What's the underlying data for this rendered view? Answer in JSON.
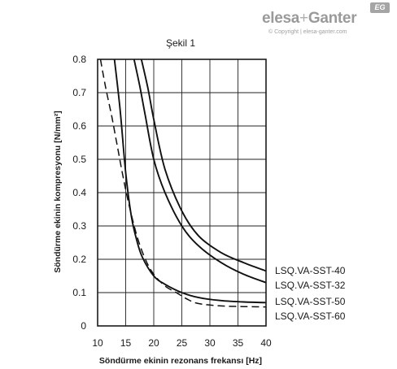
{
  "brand": {
    "name_left": "elesa",
    "plus": "+",
    "name_right": "Ganter",
    "badge": "EG",
    "copyright": "© Copyright | elesa-ganter.com"
  },
  "chart_data": {
    "type": "line",
    "title": "Şekil 1",
    "xlabel": "Söndürme ekinin rezonans frekansı [Hz]",
    "ylabel": "Söndürme ekinin kompresyonu [N/mm²]",
    "xlim": [
      10,
      40
    ],
    "ylim": [
      0,
      0.8
    ],
    "xticks": [
      10,
      15,
      20,
      25,
      30,
      35,
      40
    ],
    "yticks": [
      "0",
      "0.1",
      "0.2",
      "0.3",
      "0.4",
      "0.5",
      "0.6",
      "0.7",
      "0.8"
    ],
    "grid": true,
    "legend": "right",
    "series": [
      {
        "name": "LSQ.VA-SST-40",
        "style": "solid",
        "x": [
          17.8,
          19,
          20,
          22,
          25,
          28,
          32,
          36,
          40
        ],
        "y": [
          0.8,
          0.71,
          0.62,
          0.47,
          0.345,
          0.27,
          0.22,
          0.19,
          0.165
        ]
      },
      {
        "name": "LSQ.VA-SST-32",
        "style": "solid",
        "x": [
          16.5,
          17.5,
          18.5,
          20,
          22,
          25,
          28,
          32,
          36,
          40
        ],
        "y": [
          0.8,
          0.72,
          0.63,
          0.5,
          0.4,
          0.3,
          0.24,
          0.19,
          0.155,
          0.13
        ]
      },
      {
        "name": "LSQ.VA-SST-50",
        "style": "solid",
        "x": [
          13,
          14,
          15,
          16,
          17,
          18,
          20,
          22,
          25,
          28,
          32,
          36,
          40
        ],
        "y": [
          0.8,
          0.65,
          0.46,
          0.33,
          0.255,
          0.205,
          0.15,
          0.125,
          0.1,
          0.085,
          0.076,
          0.072,
          0.07
        ]
      },
      {
        "name": "LSQ.VA-SST-60",
        "style": "dashed",
        "x": [
          10.5,
          11.5,
          12.5,
          13.5,
          14.5,
          15.5,
          17,
          18.5,
          20,
          22,
          24,
          26,
          28,
          32,
          36,
          40
        ],
        "y": [
          0.8,
          0.71,
          0.63,
          0.54,
          0.45,
          0.37,
          0.27,
          0.2,
          0.155,
          0.12,
          0.1,
          0.08,
          0.067,
          0.06,
          0.058,
          0.057
        ]
      }
    ]
  }
}
